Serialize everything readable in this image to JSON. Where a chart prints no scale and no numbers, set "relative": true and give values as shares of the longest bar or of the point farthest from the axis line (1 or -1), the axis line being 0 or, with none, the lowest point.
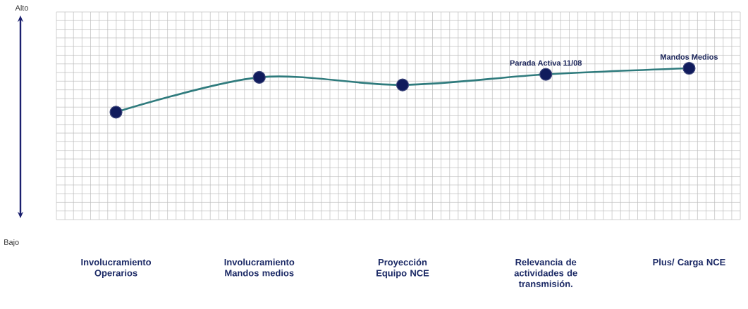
{
  "chart_data": {
    "type": "line",
    "relative": true,
    "grid": true,
    "marker": "circle",
    "line_style": "solid",
    "categories": [
      "Involucramiento Operarios",
      "Involucramiento Mandos medios",
      "Proyección Equipo NCE",
      "Relevancia de actividades de transmisión.",
      "Plus/ Carga NCE"
    ],
    "series": [
      {
        "color": "#2f7b7d",
        "colors": [
          "#101b5c",
          "#101b5c",
          "#101b5c",
          "#101b5c",
          "#101b5c"
        ],
        "values": [
          0.71,
          0.94,
          0.89,
          0.96,
          1
        ]
      }
    ],
    "annotations": [
      "Alto",
      "Bajo",
      {
        "text": "Parada Activa 11/08",
        "x": "Relevancia de actividades de transmisión.",
        "y": 0.96
      },
      {
        "text": "Mandos Medios",
        "x": "Plus/ Carga NCE",
        "y": 1
      }
    ]
  }
}
